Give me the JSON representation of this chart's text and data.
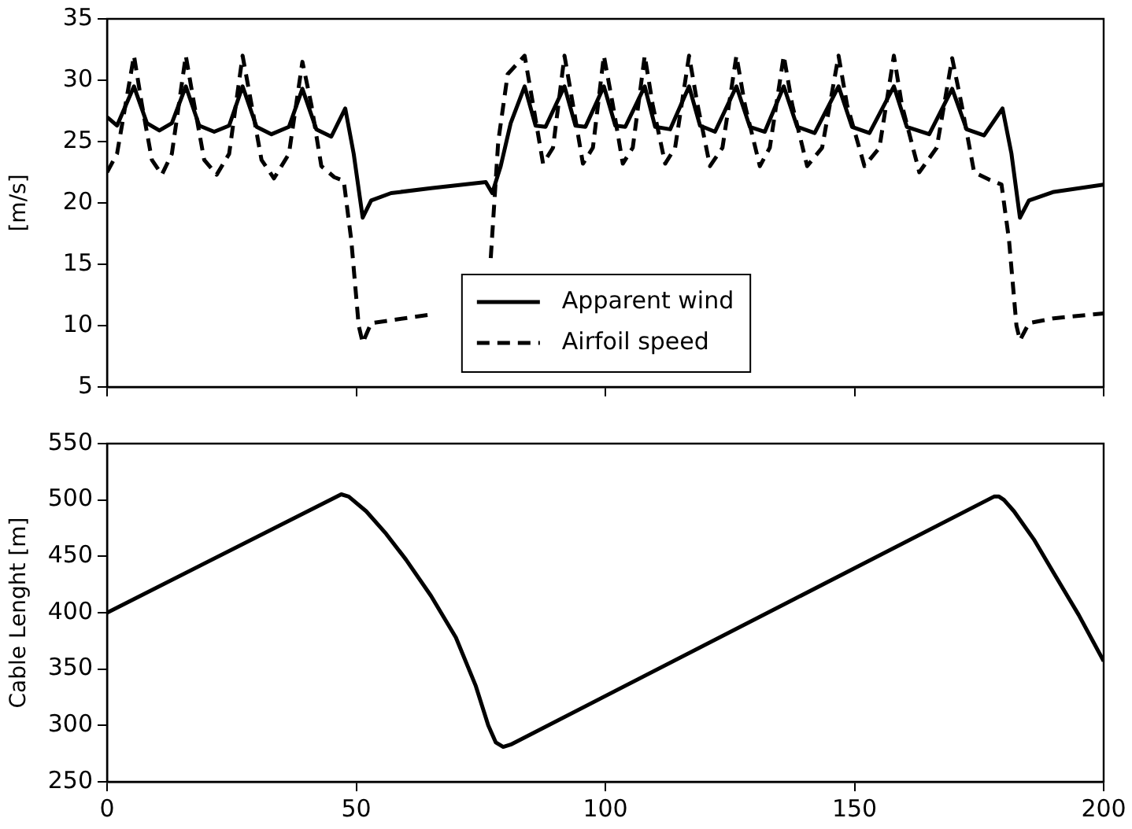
{
  "chart_data": [
    {
      "type": "line",
      "ylabel": "[m/s]",
      "xlim": [
        0,
        200
      ],
      "xticks": [
        {
          "value": 0,
          "label": null
        },
        {
          "value": 50,
          "label": null
        },
        {
          "value": 100,
          "label": null
        },
        {
          "value": 150,
          "label": null
        },
        {
          "value": 200,
          "label": null
        }
      ],
      "ylim": [
        5,
        35
      ],
      "yticks": [
        5,
        10,
        15,
        20,
        25,
        30,
        35
      ],
      "tick_labels": "y",
      "grid": false,
      "legend": "bottom",
      "marker": "none",
      "series": [
        {
          "name": "Apparent wind",
          "color": "#000000",
          "line_style": "solid",
          "x": [
            0,
            2,
            5.4,
            8,
            10.5,
            13,
            15.8,
            18.5,
            21.5,
            24.5,
            27.2,
            30,
            33,
            36.5,
            39.2,
            42,
            45,
            47.8,
            49.5,
            51.3,
            53,
            57,
            65,
            76,
            77.3,
            79,
            81,
            83.8,
            86,
            88,
            91.8,
            94,
            96,
            99.7,
            102,
            104,
            107.9,
            110,
            113,
            116.8,
            119,
            122,
            126.3,
            129,
            132,
            135.8,
            138.5,
            142,
            146.8,
            149.5,
            153,
            157.9,
            160.5,
            165,
            169.6,
            172.5,
            176,
            179.7,
            181.5,
            183.2,
            185,
            190,
            200
          ],
          "values": [
            27,
            26.3,
            29.5,
            26.5,
            25.9,
            26.5,
            29.5,
            26.3,
            25.8,
            26.3,
            29.5,
            26.2,
            25.6,
            26.2,
            29.3,
            26,
            25.4,
            27.7,
            24,
            18.8,
            20.2,
            20.8,
            21.2,
            21.7,
            20.8,
            23,
            26.5,
            29.5,
            26.3,
            26.2,
            29.5,
            26.3,
            26.2,
            29.5,
            26.3,
            26.2,
            29.5,
            26.2,
            26,
            29.5,
            26.3,
            25.8,
            29.5,
            26.2,
            25.8,
            29.5,
            26.2,
            25.7,
            29.5,
            26.2,
            25.7,
            29.5,
            26.2,
            25.6,
            29.3,
            26,
            25.5,
            27.7,
            24,
            18.8,
            20.2,
            20.9,
            21.5
          ]
        },
        {
          "name": "Airfoil speed",
          "color": "#000000",
          "line_style": "dashed",
          "x": [
            0,
            2,
            5.4,
            7,
            9,
            11,
            13,
            15.8,
            17.5,
            19.5,
            22,
            24.5,
            27.2,
            29,
            31,
            33.5,
            36.5,
            39.2,
            41,
            43,
            45.6,
            47.5,
            49,
            50.5,
            51.3,
            53,
            58,
            65,
            70,
            77,
            78.5,
            80.4,
            83.8,
            85.5,
            87.5,
            89.5,
            91.8,
            93.5,
            95.5,
            97.5,
            99.7,
            101.5,
            103.5,
            105.5,
            107.9,
            109.5,
            112,
            114,
            116.8,
            118.5,
            121,
            123.5,
            126.3,
            128,
            131,
            133,
            135.8,
            137.5,
            140.5,
            143.5,
            146.8,
            148.5,
            152,
            155,
            157.9,
            159.5,
            163,
            166.5,
            169.6,
            171.5,
            174,
            177,
            179.5,
            181,
            182.5,
            183.2,
            185,
            190,
            200
          ],
          "values": [
            22.5,
            24,
            32,
            28,
            23.5,
            22.3,
            24,
            32,
            28,
            23.5,
            22.3,
            24,
            32,
            28,
            23.5,
            22,
            24,
            31.5,
            28,
            23,
            22.1,
            21.8,
            17,
            10,
            8.6,
            10.2,
            10.5,
            10.9,
            null,
            15.5,
            25,
            30.5,
            32,
            28,
            23.2,
            24.5,
            32,
            28,
            23.2,
            24.5,
            32,
            28,
            23.2,
            24.5,
            32,
            28,
            23.2,
            24.5,
            32,
            28,
            23,
            24.5,
            32,
            28,
            23,
            24.5,
            32,
            28,
            23,
            24.5,
            32,
            28,
            23,
            24.5,
            32,
            28,
            22.5,
            24.5,
            31.8,
            28,
            22.5,
            21.9,
            21.5,
            17,
            10,
            8.8,
            10.2,
            10.6,
            11
          ]
        }
      ]
    },
    {
      "type": "line",
      "ylabel": "Cable Lenght [m]",
      "xlim": [
        0,
        200
      ],
      "xticks": [
        0,
        50,
        100,
        150,
        200
      ],
      "ylim": [
        250,
        550
      ],
      "yticks": [
        250,
        300,
        350,
        400,
        450,
        500,
        550
      ],
      "grid": false,
      "legend": false,
      "marker": "none",
      "line_style": "solid",
      "series": [
        {
          "color": "#000000",
          "x": [
            0,
            47,
            48.5,
            52,
            56,
            60,
            65,
            70,
            74,
            76.5,
            78,
            79.5,
            81,
            178,
            179,
            180,
            182,
            186,
            190,
            195,
            200
          ],
          "values": [
            400,
            505,
            503,
            490,
            470,
            447,
            415,
            378,
            335,
            300,
            285,
            281,
            283,
            503,
            503,
            500,
            490,
            465,
            435,
            398,
            357
          ]
        }
      ]
    }
  ]
}
